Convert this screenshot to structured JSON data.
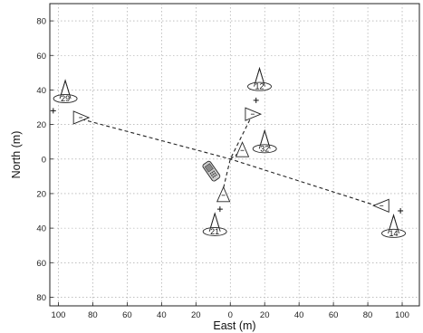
{
  "chart_data": {
    "type": "scatter",
    "title": "",
    "xlabel": "East (m)",
    "ylabel": "North (m)",
    "xlim": [
      -105,
      110
    ],
    "ylim": [
      -85,
      90
    ],
    "x_ticks": [
      -100,
      -80,
      -60,
      -40,
      -20,
      0,
      20,
      40,
      60,
      80,
      100
    ],
    "x_tick_labels": [
      "100",
      "80",
      "60",
      "40",
      "20",
      "0",
      "20",
      "40",
      "60",
      "80",
      "100"
    ],
    "y_ticks": [
      80,
      60,
      40,
      20,
      0,
      -20,
      -40,
      -60,
      -80
    ],
    "y_tick_labels": [
      "80",
      "60",
      "40",
      "20",
      "0",
      "20",
      "40",
      "60",
      "80"
    ],
    "grid": true,
    "cones": [
      {
        "label": "29",
        "x": -96,
        "y": 35
      },
      {
        "label": "12",
        "x": 17,
        "y": 42
      },
      {
        "label": "32",
        "x": 20,
        "y": 6
      },
      {
        "label": "21",
        "x": -9,
        "y": -42
      },
      {
        "label": "14",
        "x": 95,
        "y": -43
      }
    ],
    "triangles": [
      {
        "x": -87,
        "y": 24,
        "dir": "right"
      },
      {
        "x": 13,
        "y": 26,
        "dir": "right"
      },
      {
        "x": 7,
        "y": 5,
        "dir": "up"
      },
      {
        "x": -4,
        "y": -21,
        "dir": "up"
      },
      {
        "x": 88,
        "y": -27,
        "dir": "left"
      }
    ],
    "plus_markers": [
      {
        "x": -103,
        "y": 28
      },
      {
        "x": 15,
        "y": 34
      },
      {
        "x": -6,
        "y": -29
      },
      {
        "x": 99,
        "y": -30
      }
    ],
    "phone": {
      "x": -11,
      "y": -7
    },
    "dashed_lines": [
      {
        "x": [
          -90,
          0,
          85
        ],
        "y": [
          24,
          0,
          -27
        ]
      },
      {
        "x": [
          13,
          0,
          -5
        ],
        "y": [
          26,
          0,
          -21
        ]
      },
      {
        "x": [
          0,
          7
        ],
        "y": [
          0,
          5
        ]
      }
    ]
  }
}
